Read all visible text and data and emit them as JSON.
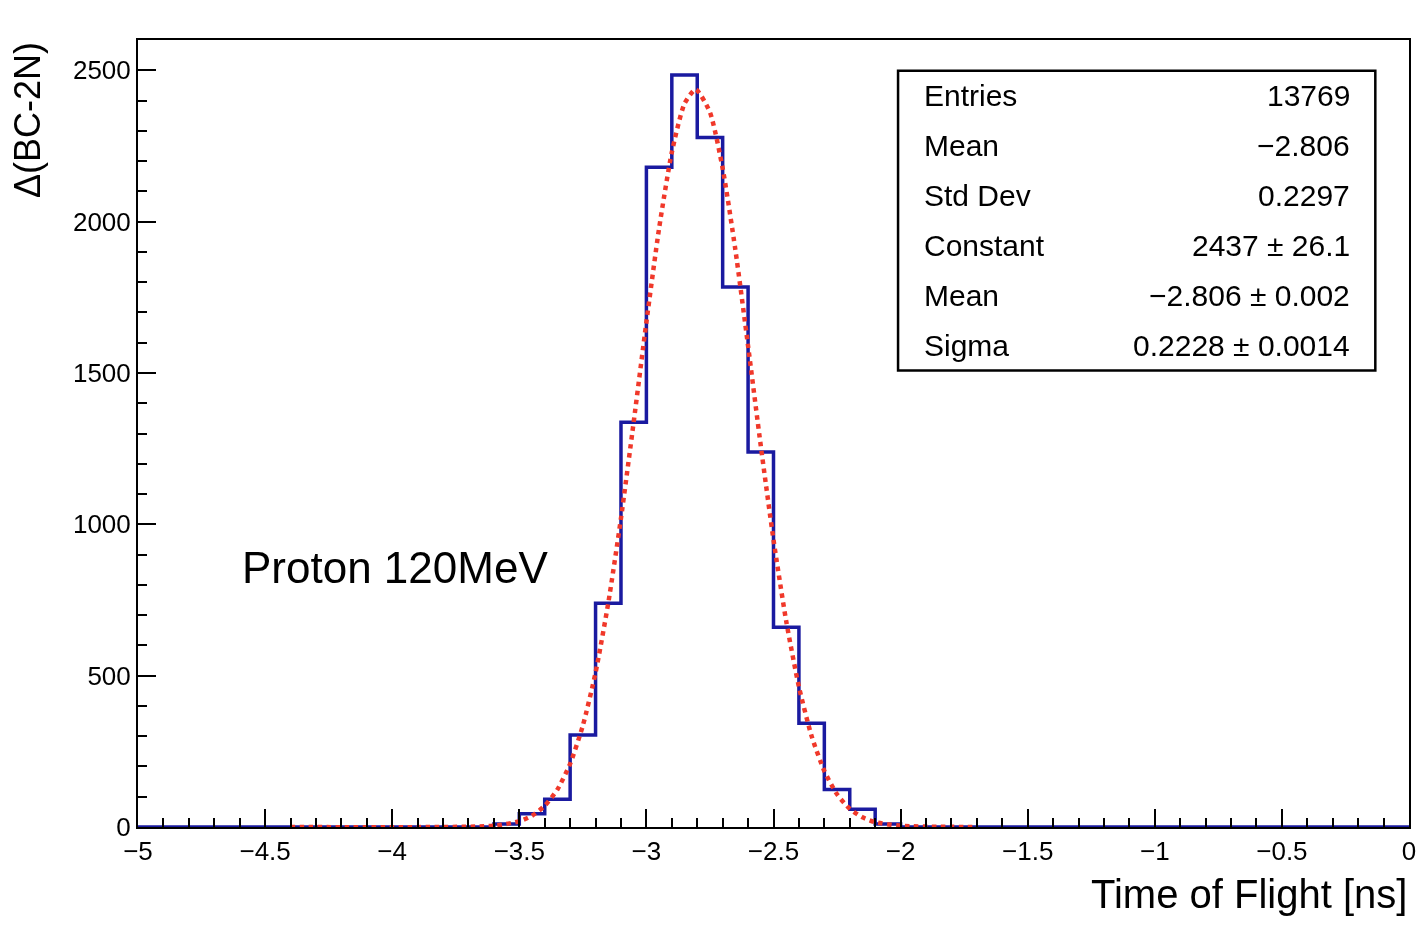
{
  "chart_data": {
    "type": "histogram",
    "xlabel": "Time of Flight [ns]",
    "ylabel": "Δ(BC-2N)",
    "bins": [
      -5,
      -4.9,
      -4.8,
      -4.7,
      -4.6,
      -4.5,
      -4.4,
      -4.3,
      -4.2,
      -4.1,
      -4,
      -3.9,
      -3.8,
      -3.7,
      -3.6,
      -3.5,
      -3.4,
      -3.3,
      -3.2,
      -3.1,
      -3,
      -2.9,
      -2.8,
      -2.7,
      -2.6,
      -2.5,
      -2.4,
      -2.3,
      -2.2,
      -2.1,
      -2,
      -1.9,
      -1.8,
      -1.7,
      -1.6,
      -1.5,
      -1.4,
      -1.3,
      -1.2,
      -1.1,
      -1,
      -0.9,
      -0.8,
      -0.7,
      -0.6,
      -0.5,
      -0.4,
      -0.3,
      -0.2,
      -0.1,
      0
    ],
    "values": [
      0,
      0,
      0,
      0,
      0,
      0,
      0,
      0,
      0,
      0,
      0,
      0,
      0,
      0,
      10,
      44,
      92,
      304,
      739,
      1337,
      2180,
      2484,
      2278,
      1784,
      1239,
      660,
      343,
      124,
      59,
      10,
      0,
      0,
      0,
      0,
      0,
      0,
      0,
      0,
      0,
      0,
      0,
      0,
      0,
      0,
      0,
      0,
      0,
      0,
      0,
      0
    ],
    "color": "#1a1aa0",
    "series": [
      {
        "type": "line",
        "color": "#f0382a",
        "line_style": "dotted",
        "marker": "none",
        "x": [
          -4.4,
          -3.6,
          -3.5,
          -3.45,
          -3.4,
          -3.35,
          -3.3,
          -3.25,
          -3.2,
          -3.15,
          -3.1,
          -3.05,
          -3.0,
          -2.95,
          -2.9,
          -2.85,
          -2.806,
          -2.75,
          -2.7,
          -2.65,
          -2.6,
          -2.55,
          -2.5,
          -2.45,
          -2.4,
          -2.35,
          -2.3,
          -2.25,
          -2.2,
          -2.15,
          -2.1,
          -2.0,
          -1.7
        ],
        "values": [
          0,
          4,
          19,
          37,
          70,
          124,
          209,
          335,
          510,
          740,
          1020,
          1338,
          1668,
          1978,
          2229,
          2390,
          2437,
          2361,
          2176,
          1907,
          1589,
          1259,
          949,
          680,
          463,
          300,
          185,
          108,
          60,
          32,
          16,
          4,
          0
        ]
      }
    ],
    "xlim": [
      -5,
      0
    ],
    "ylim": [
      0,
      2600
    ],
    "xticks": [
      {
        "value": -5,
        "label": "−5"
      },
      {
        "value": -4.5,
        "label": "−4.5"
      },
      {
        "value": -4,
        "label": "−4"
      },
      {
        "value": -3.5,
        "label": "−3.5"
      },
      {
        "value": -3,
        "label": "−3"
      },
      {
        "value": -2.5,
        "label": "−2.5"
      },
      {
        "value": -2,
        "label": "−2"
      },
      {
        "value": -1.5,
        "label": "−1.5"
      },
      {
        "value": -1,
        "label": "−1"
      },
      {
        "value": -0.5,
        "label": "−0.5"
      },
      0
    ],
    "yticks": [
      0,
      500,
      1000,
      1500,
      2000,
      2500
    ],
    "annotations": [
      "Proton 120MeV",
      "Entries",
      "13769",
      "Mean",
      "−2.806",
      "Std Dev",
      "0.2297",
      "Constant",
      "2437 ± 26.1",
      "Mean",
      "−2.806 ± 0.002",
      "Sigma",
      "0.2228 ± 0.0014"
    ]
  }
}
